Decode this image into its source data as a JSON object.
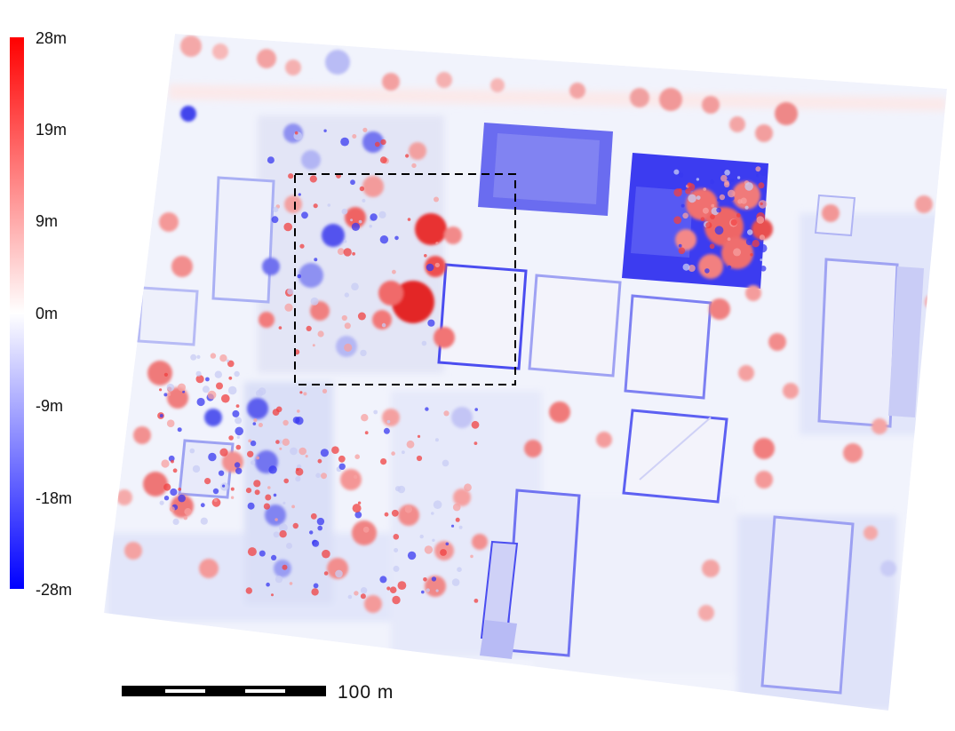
{
  "legend": {
    "colors": {
      "max": "#ff0000",
      "zero": "#ffffff",
      "min": "#0000ff"
    },
    "labels": [
      "28m",
      "19m",
      "9m",
      "0m",
      "-9m",
      "-18m",
      "-28m"
    ]
  },
  "scalebar": {
    "label": "100 m"
  },
  "palette": {
    "red": "#f04040",
    "light_red": "#f7a0a0",
    "blue": "#3838f0",
    "light_blue": "#c8ccf4",
    "pale_blue": "#eaeefb",
    "frame": "#000000"
  }
}
